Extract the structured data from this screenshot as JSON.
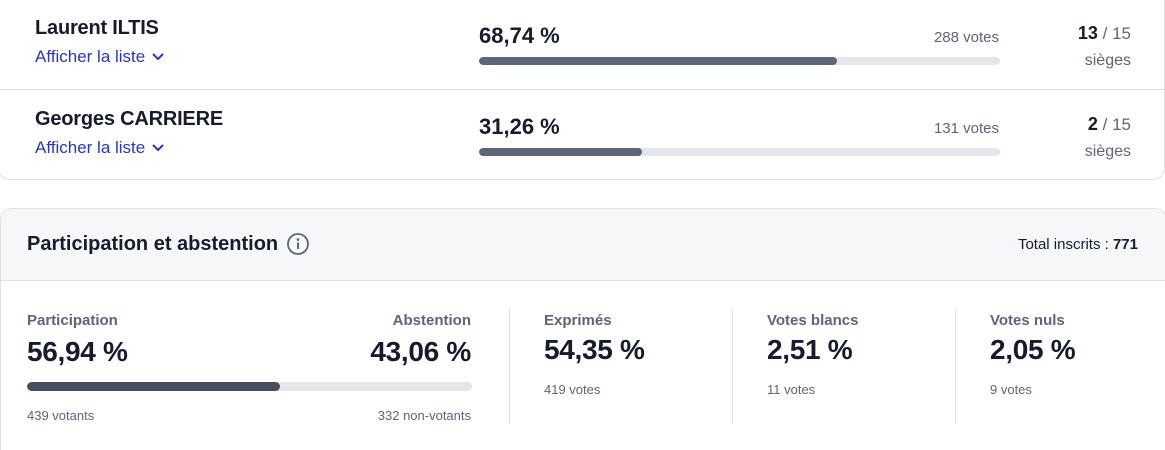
{
  "candidates": [
    {
      "name": "Laurent ILTIS",
      "show_list": "Afficher la liste",
      "percent": "68,74 %",
      "percent_value": 68.74,
      "votes": "288 votes",
      "seats": "13",
      "seats_total": "/ 15",
      "seats_label": "sièges"
    },
    {
      "name": "Georges CARRIERE",
      "show_list": "Afficher la liste",
      "percent": "31,26 %",
      "percent_value": 31.26,
      "votes": "131 votes",
      "seats": "2",
      "seats_total": "/ 15",
      "seats_label": "sièges"
    }
  ],
  "participation": {
    "title": "Participation et abstention",
    "total_label": "Total inscrits :",
    "total_value": "771",
    "participation_label": "Participation",
    "participation_value": "56,94 %",
    "participation_fraction": 56.94,
    "participation_sub": "439 votants",
    "abstention_label": "Abstention",
    "abstention_value": "43,06 %",
    "abstention_sub": "332 non-votants",
    "stats": [
      {
        "label": "Exprimés",
        "value": "54,35 %",
        "sub": "419 votes"
      },
      {
        "label": "Votes blancs",
        "value": "2,51 %",
        "sub": "11 votes"
      },
      {
        "label": "Votes nuls",
        "value": "2,05 %",
        "sub": "9 votes"
      }
    ]
  },
  "colors": {
    "link": "#2a37b8",
    "bar_fill": "#5e6574",
    "participation_fill": "#474f5e",
    "track": "#e4e6ec"
  },
  "icons": {
    "show_list": "chevron-down-icon",
    "info": "info-icon"
  }
}
